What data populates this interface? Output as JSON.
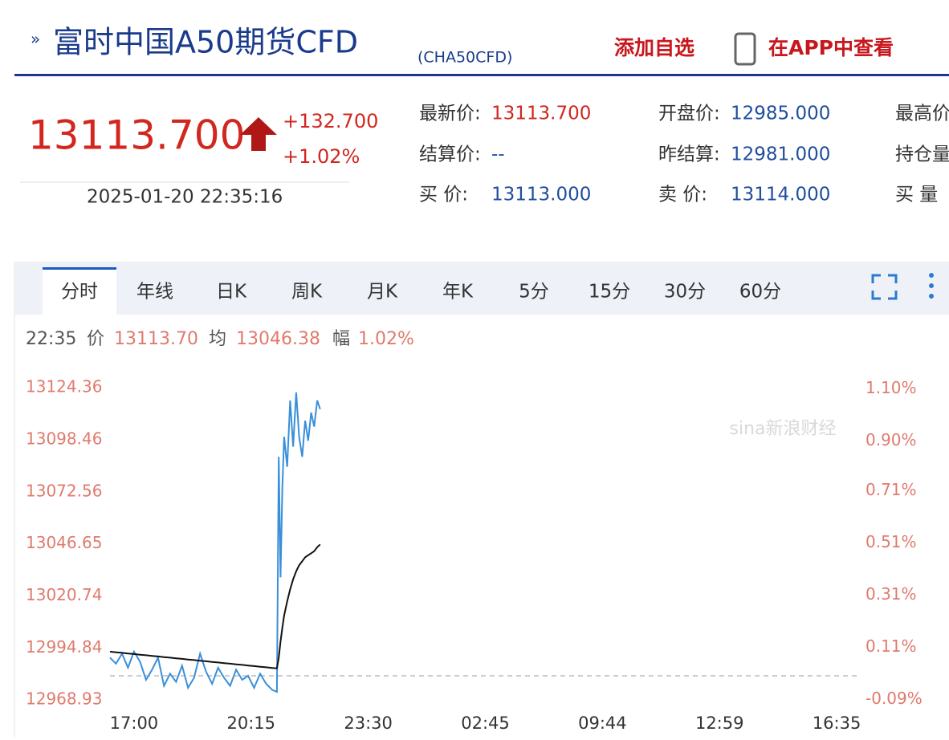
{
  "header": {
    "title": "富时中国A50期货CFD",
    "code": "(CHA50CFD)",
    "add_watch": "添加自选",
    "open_app": "在APP中查看"
  },
  "quote": {
    "price": "13113.700",
    "change": "+132.700",
    "change_pct": "+1.02%",
    "time": "2025-01-20 22:35:16"
  },
  "fields": [
    {
      "label": "最新价:",
      "value": "13113.700"
    },
    {
      "label": "结算价:",
      "value": "--"
    },
    {
      "label": "买 价:",
      "value": "13113.000"
    },
    {
      "label": "开盘价:",
      "value": "12985.000"
    },
    {
      "label": "昨结算:",
      "value": "12981.000"
    },
    {
      "label": "卖 价:",
      "value": "13114.000"
    },
    {
      "label": "最高价",
      "value": ""
    },
    {
      "label": "持仓量",
      "value": ""
    },
    {
      "label": "买 量",
      "value": ""
    }
  ],
  "tabs": [
    "分时",
    "年线",
    "日K",
    "周K",
    "月K",
    "年K",
    "5分",
    "15分",
    "30分",
    "60分"
  ],
  "info": {
    "time": "22:35",
    "price_label": "价",
    "price": "13113.70",
    "avg_label": "均",
    "avg": "13046.38",
    "pct_label": "幅",
    "pct": "1.02%"
  },
  "chart_data": {
    "type": "line",
    "watermark": "sina新浪财经",
    "x": [
      0,
      10,
      20,
      30,
      40,
      50,
      60,
      70,
      80,
      90,
      100,
      110,
      120,
      130,
      140,
      150,
      160,
      170,
      180,
      190,
      200,
      210,
      220,
      230,
      240,
      250,
      260,
      270,
      278,
      281,
      284,
      287,
      290,
      295,
      300,
      305,
      310,
      315,
      320,
      325,
      330,
      335,
      340,
      345,
      350
    ],
    "series": [
      {
        "name": "价",
        "color": "#3a8fd9",
        "values": [
          12990,
          12987,
          12992,
          12985,
          12993,
          12988,
          12979,
          12984,
          12990,
          12976,
          12982,
          12978,
          12986,
          12975,
          12980,
          12992,
          12983,
          12977,
          12985,
          12980,
          12976,
          12984,
          12979,
          12981,
          12975,
          12982,
          12977,
          12974,
          12973,
          13090,
          13030,
          13075,
          13100,
          13085,
          13118,
          13095,
          13122,
          13100,
          13090,
          13108,
          13098,
          13112,
          13105,
          13118,
          13113.7
        ]
      },
      {
        "name": "均",
        "color": "#111111",
        "values": [
          12993,
          12992.7,
          12992.4,
          12992.1,
          12991.8,
          12991.5,
          12991.2,
          12990.9,
          12990.6,
          12990.3,
          12990,
          12989.7,
          12989.4,
          12989.1,
          12988.8,
          12988.5,
          12988.2,
          12987.9,
          12987.6,
          12987.3,
          12987,
          12986.7,
          12986.4,
          12986.1,
          12985.8,
          12985.5,
          12985.2,
          12984.9,
          12984.7,
          12990,
          12998,
          13005,
          13011,
          13018,
          13024,
          13029,
          13033,
          13036,
          13038,
          13040,
          13041,
          13042,
          13043,
          13045,
          13046.38
        ]
      }
    ],
    "reference_line": 12981,
    "xlim": [
      0,
      1250
    ],
    "xticks": [
      {
        "value": 40,
        "label": "17:00"
      },
      {
        "value": 235,
        "label": "20:15"
      },
      {
        "value": 430,
        "label": "23:30"
      },
      {
        "value": 625,
        "label": "02:45"
      },
      {
        "value": 820,
        "label": "09:44"
      },
      {
        "value": 1015,
        "label": "12:59"
      },
      {
        "value": 1210,
        "label": "16:35"
      }
    ],
    "ylim": [
      12965,
      13130
    ],
    "yticks": [
      12968.93,
      12994.84,
      13020.74,
      13046.65,
      13072.56,
      13098.46,
      13124.36
    ],
    "y2lim": [
      -0.123,
      1.148
    ],
    "y2ticks": [
      {
        "value": -0.09,
        "label": "-0.09%"
      },
      {
        "value": 0.11,
        "label": "0.11%"
      },
      {
        "value": 0.31,
        "label": "0.31%"
      },
      {
        "value": 0.51,
        "label": "0.51%"
      },
      {
        "value": 0.71,
        "label": "0.71%"
      },
      {
        "value": 0.9,
        "label": "0.90%"
      },
      {
        "value": 1.1,
        "label": "1.10%"
      }
    ]
  }
}
